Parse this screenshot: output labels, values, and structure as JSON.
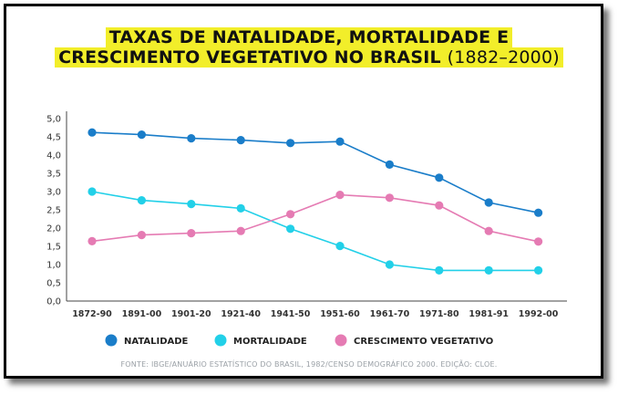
{
  "title": {
    "line1": "TAXAS DE NATALIDADE, MORTALIDADE E",
    "line2_bold": "CRESCIMENTO VEGETATIVO NO BRASIL",
    "line2_light": "(1882–2000)"
  },
  "source": "FONTE: IBGE/ANUÁRIO ESTATÍSTICO DO BRASIL, 1982/CENSO DEMOGRÁFICO 2000. EDIÇÃO: CLOE.",
  "chart_data": {
    "type": "line",
    "categories": [
      "1872-90",
      "1891-00",
      "1901-20",
      "1921-40",
      "1941-50",
      "1951-60",
      "1961-70",
      "1971-80",
      "1981-91",
      "1992-00"
    ],
    "y_ticks": [
      "0,0",
      "0,5",
      "1,0",
      "1,5",
      "2,0",
      "2,5",
      "3,0",
      "3,5",
      "4,0",
      "4,5",
      "5,0"
    ],
    "ylim": [
      0,
      5
    ],
    "grid": false,
    "legend_position": "bottom",
    "series": [
      {
        "name": "NATALIDADE",
        "color": "#1a7dc9",
        "values": [
          4.62,
          4.56,
          4.46,
          4.41,
          4.33,
          4.37,
          3.74,
          3.38,
          2.7,
          2.42
        ]
      },
      {
        "name": "MORTALIDADE",
        "color": "#22d0e8",
        "values": [
          3.0,
          2.76,
          2.66,
          2.54,
          1.98,
          1.51,
          1.0,
          0.84,
          0.84,
          0.84
        ]
      },
      {
        "name": "CRESCIMENTO VEGETATIVO",
        "color": "#e57bb3",
        "values": [
          1.64,
          1.81,
          1.86,
          1.92,
          2.38,
          2.91,
          2.83,
          2.62,
          1.92,
          1.63
        ]
      }
    ]
  }
}
